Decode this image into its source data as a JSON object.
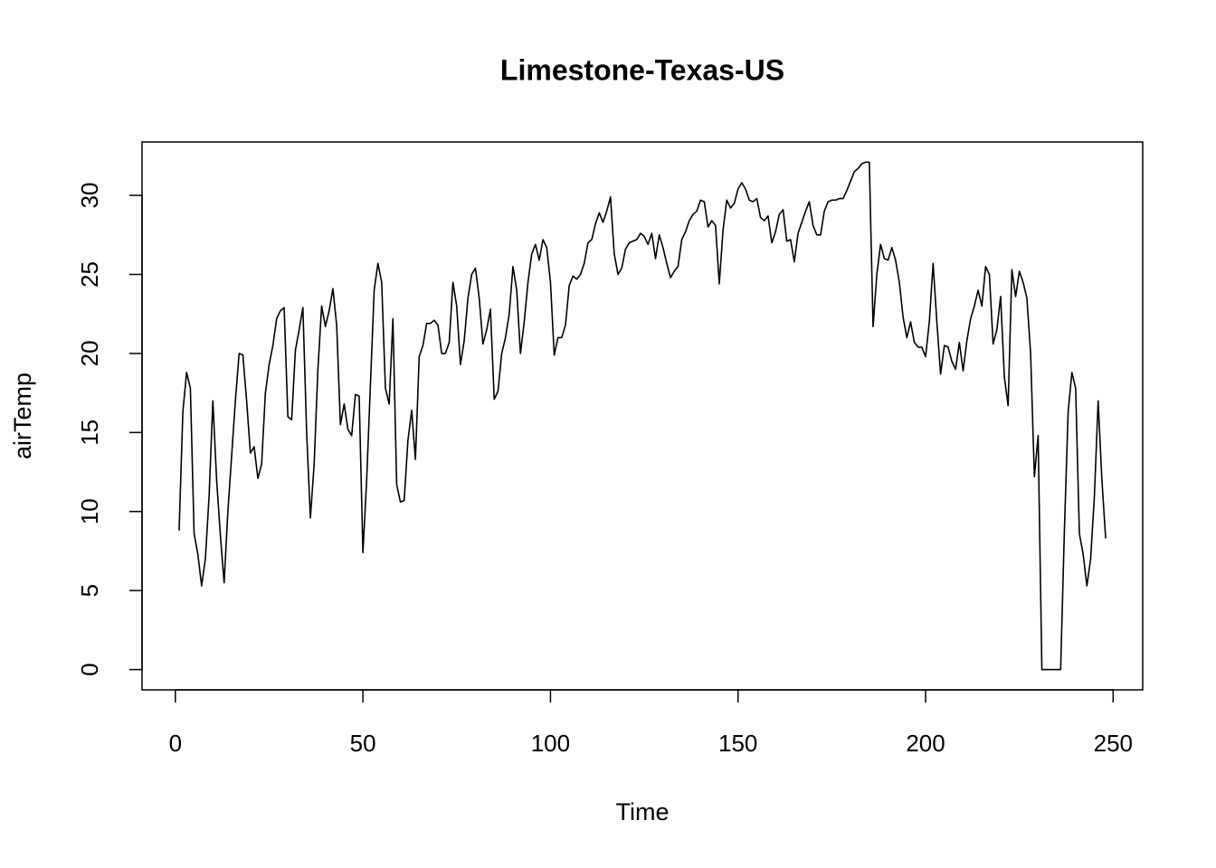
{
  "chart_data": {
    "type": "line",
    "title": "Limestone-Texas-US",
    "x_label": "Time",
    "y_label": "airTemp",
    "x": [
      1,
      2,
      3,
      4,
      5,
      6,
      7,
      8,
      9,
      10,
      11,
      12,
      13,
      14,
      15,
      16,
      17,
      18,
      19,
      20,
      21,
      22,
      23,
      24,
      25,
      26,
      27,
      28,
      29,
      30,
      31,
      32,
      33,
      34,
      35,
      36,
      37,
      38,
      39,
      40,
      41,
      42,
      43,
      44,
      45,
      46,
      47,
      48,
      49,
      50,
      51,
      52,
      53,
      54,
      55,
      56,
      57,
      58,
      59,
      60,
      61,
      62,
      63,
      64,
      65,
      66,
      67,
      68,
      69,
      70,
      71,
      72,
      73,
      74,
      75,
      76,
      77,
      78,
      79,
      80,
      81,
      82,
      83,
      84,
      85,
      86,
      87,
      88,
      89,
      90,
      91,
      92,
      93,
      94,
      95,
      96,
      97,
      98,
      99,
      100,
      101,
      102,
      103,
      104,
      105,
      106,
      107,
      108,
      109,
      110,
      111,
      112,
      113,
      114,
      115,
      116,
      117,
      118,
      119,
      120,
      121,
      122,
      123,
      124,
      125,
      126,
      127,
      128,
      129,
      130,
      131,
      132,
      133,
      134,
      135,
      136,
      137,
      138,
      139,
      140,
      141,
      142,
      143,
      144,
      145,
      146,
      147,
      148,
      149,
      150,
      151,
      152,
      153,
      154,
      155,
      156,
      157,
      158,
      159,
      160,
      161,
      162,
      163,
      164,
      165,
      166,
      167,
      168,
      169,
      170,
      171,
      172,
      173,
      174,
      175,
      176,
      177,
      178,
      179,
      180,
      181,
      182,
      183,
      184,
      185,
      186,
      187,
      188,
      189,
      190,
      191,
      192,
      193,
      194,
      195,
      196,
      197,
      198,
      199,
      200,
      201,
      202,
      203,
      204,
      205,
      206,
      207,
      208,
      209,
      210,
      211,
      212,
      213,
      214,
      215,
      216,
      217,
      218,
      219,
      220,
      221,
      222,
      223,
      224,
      225,
      226,
      227,
      228,
      229,
      230,
      231,
      232,
      233,
      234,
      235,
      236,
      237,
      238,
      239,
      240,
      241,
      242,
      243,
      244,
      245,
      246,
      247,
      248
    ],
    "series": [
      {
        "name": "airTemp",
        "color": "#000000",
        "values": [
          8.8,
          16.3,
          18.8,
          17.8,
          8.6,
          7.3,
          5.3,
          7,
          11,
          17,
          12,
          8.5,
          5.5,
          10,
          13.5,
          17,
          20,
          19.9,
          17,
          13.7,
          14.1,
          12.1,
          13,
          17.5,
          19.3,
          20.5,
          22.2,
          22.7,
          22.9,
          16,
          15.8,
          20.2,
          21.5,
          22.9,
          15,
          9.6,
          13,
          19,
          23,
          21.7,
          22.7,
          24.1,
          21.8,
          15.5,
          16.8,
          15.2,
          14.8,
          17.4,
          17.3,
          7.4,
          12,
          18,
          24,
          25.7,
          24.5,
          17.8,
          16.8,
          22.2,
          11.7,
          10.6,
          10.7,
          14.5,
          16.4,
          13.3,
          19.8,
          20.5,
          21.9,
          21.9,
          22.1,
          21.8,
          20,
          20,
          20.7,
          24.5,
          23,
          19.3,
          20.8,
          23.5,
          25,
          25.4,
          23.5,
          20.6,
          21.5,
          22.8,
          17.1,
          17.6,
          20,
          21,
          22.5,
          25.5,
          24,
          20,
          22,
          24.5,
          26.3,
          26.9,
          25.9,
          27.2,
          26.7,
          24.5,
          19.9,
          21,
          21,
          21.8,
          24.3,
          24.9,
          24.7,
          25,
          25.7,
          27,
          27.2,
          28.2,
          28.9,
          28.3,
          29,
          29.9,
          26.3,
          25,
          25.4,
          26.6,
          27,
          27.1,
          27.2,
          27.6,
          27.4,
          26.9,
          27.6,
          26,
          27.5,
          26.7,
          25.7,
          24.8,
          25.2,
          25.5,
          27.2,
          27.7,
          28.4,
          28.8,
          29,
          29.7,
          29.6,
          28,
          28.4,
          28.1,
          24.4,
          27.8,
          29.7,
          29.2,
          29.5,
          30.4,
          30.8,
          30.4,
          29.7,
          29.6,
          29.8,
          28.6,
          28.4,
          28.7,
          27,
          27.7,
          28.8,
          29.1,
          27.1,
          27.2,
          25.8,
          27.6,
          28.3,
          29,
          29.6,
          28.1,
          27.5,
          27.5,
          29,
          29.6,
          29.7,
          29.7,
          29.8,
          29.8,
          30.3,
          30.9,
          31.5,
          31.7,
          32,
          32.1,
          32.1,
          21.7,
          25,
          26.9,
          26,
          25.9,
          26.7,
          25.9,
          24.5,
          22.3,
          21,
          22,
          20.7,
          20.4,
          20.4,
          19.8,
          22,
          25.7,
          22,
          18.7,
          20.5,
          20.4,
          19.5,
          19,
          20.7,
          18.9,
          20.8,
          22.2,
          23,
          24,
          23,
          25.5,
          25,
          20.6,
          21.5,
          23.6,
          18.5,
          16.7,
          25.3,
          23.6,
          25.2,
          24.5,
          23.5,
          20,
          12.2,
          14.8,
          0,
          0,
          0,
          0,
          0,
          0,
          8.8,
          16.3,
          18.8,
          17.8,
          8.6,
          7.3,
          5.3,
          7,
          11,
          17,
          12,
          8.3
        ]
      }
    ],
    "xlim": [
      -8.88,
      257.88
    ],
    "xticks": [
      0,
      50,
      100,
      150,
      200,
      250
    ],
    "ylim": [
      -1.284,
      33.38
    ],
    "yticks": [
      0,
      5,
      10,
      15,
      20,
      25,
      30
    ],
    "grid": false
  }
}
